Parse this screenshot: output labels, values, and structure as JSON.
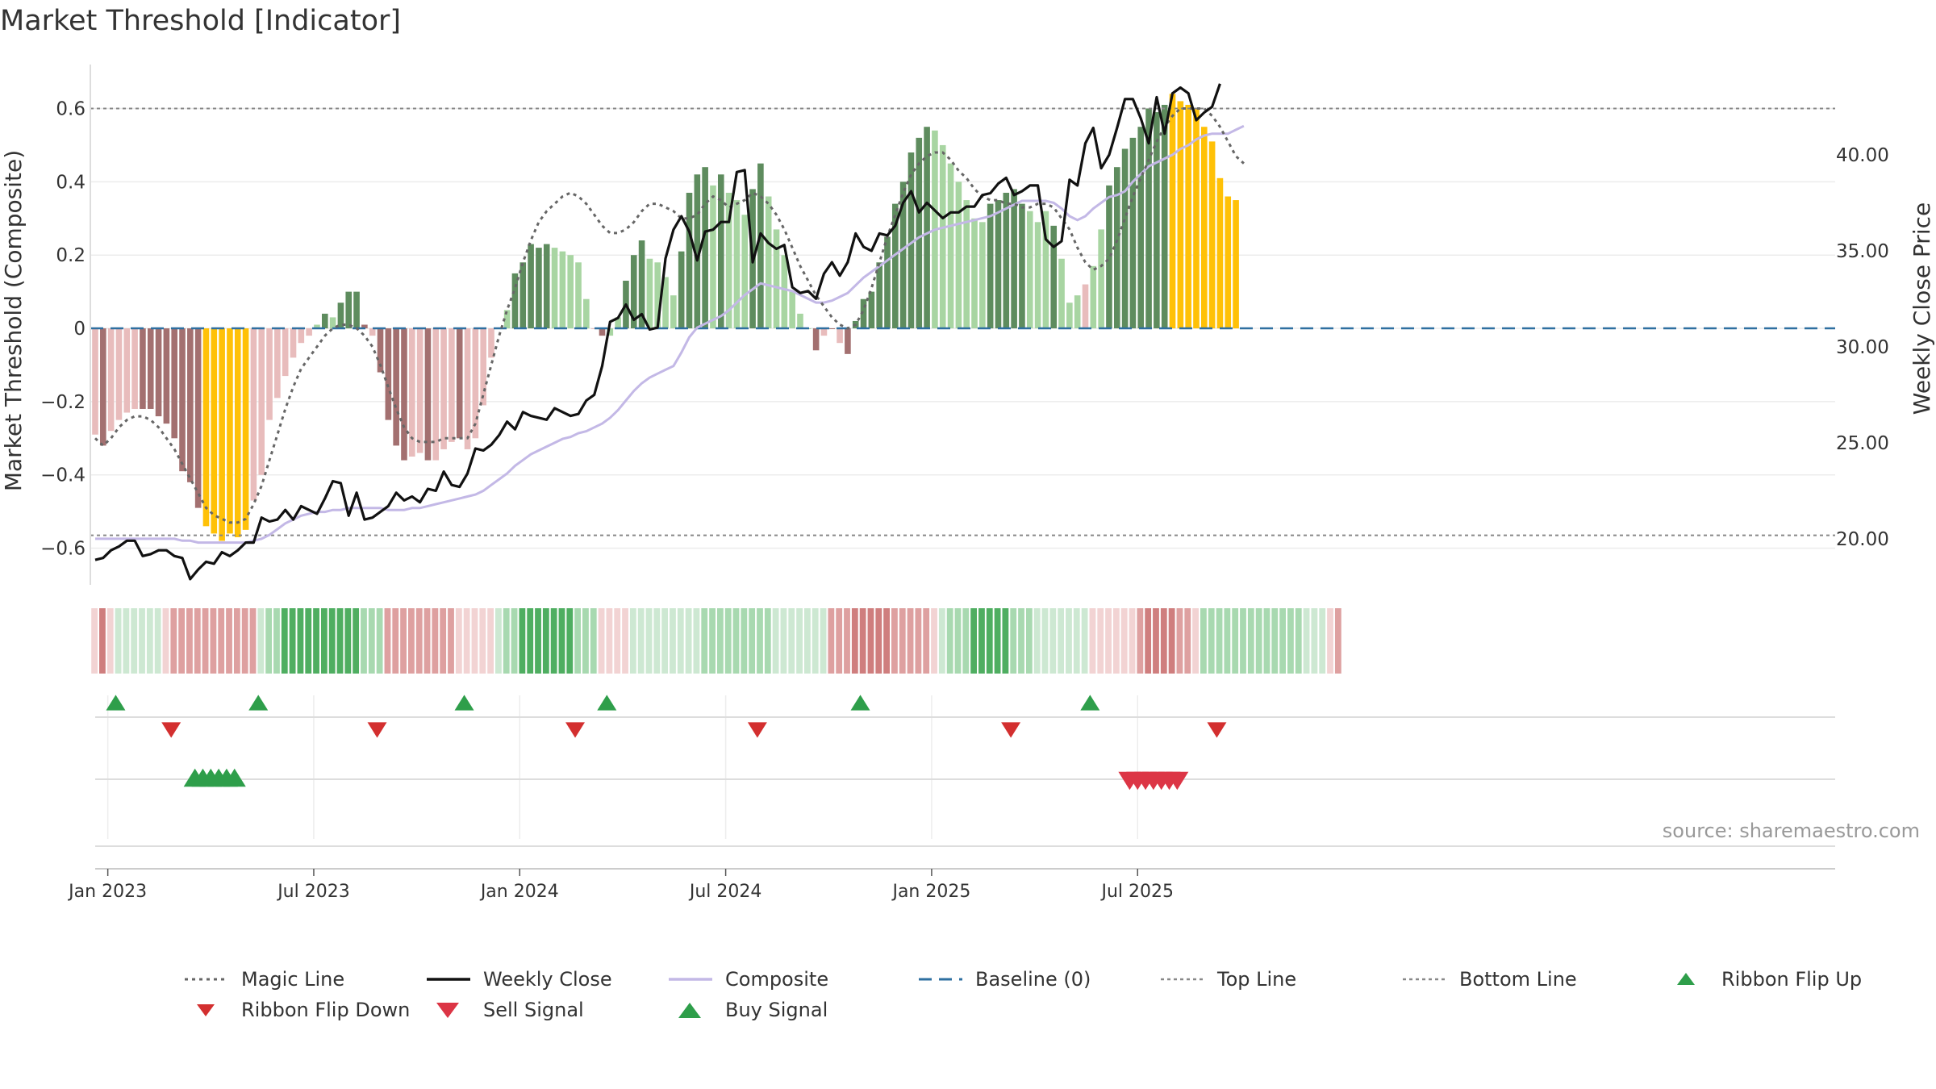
{
  "title": "Market Threshold [Indicator]",
  "source_label": "source: sharemaestro.com",
  "colors": {
    "bar_dark_green": "#5e8c5e",
    "bar_light_green": "#a8d5a2",
    "bar_dark_red": "#a37070",
    "bar_light_red": "#e8bcbc",
    "bar_gold": "#ffc107",
    "weekly_close": "#111111",
    "composite_line": "#c3b8e6",
    "magic_line": "#666666",
    "baseline": "#2e6fa0",
    "ref_line": "#888888",
    "buy": "#2e9e4a",
    "sell": "#dc3545",
    "flip_down": "#d32f2f"
  },
  "legend": [
    {
      "key": "magic",
      "label": "Magic Line",
      "style": "dotted-line"
    },
    {
      "key": "close",
      "label": "Weekly Close",
      "style": "solid-line"
    },
    {
      "key": "composite",
      "label": "Composite",
      "style": "lavender-line"
    },
    {
      "key": "baseline",
      "label": "Baseline (0)",
      "style": "dashed-line"
    },
    {
      "key": "top",
      "label": "Top Line",
      "style": "dashed-gray"
    },
    {
      "key": "bottom",
      "label": "Bottom Line",
      "style": "dashed-gray"
    },
    {
      "key": "flipup",
      "label": "Ribbon Flip Up",
      "style": "triangle-up-green"
    },
    {
      "key": "flipdown",
      "label": "Ribbon Flip Down",
      "style": "triangle-down-red"
    },
    {
      "key": "sell",
      "label": "Sell Signal",
      "style": "triangle-down-sell"
    },
    {
      "key": "buy",
      "label": "Buy Signal",
      "style": "triangle-up-buy"
    }
  ],
  "chart_data": {
    "type": "bar",
    "title": "Market Threshold [Indicator]",
    "ylabel_left": "Market Threshold (Composite)",
    "ylabel_right": "Weekly Close Price",
    "ylim_left": [
      -0.7,
      0.72
    ],
    "ylim_right": [
      17.6,
      44.7
    ],
    "y_ticks_left": [
      "0.6",
      "0.4",
      "0.2",
      "0",
      "−0.2",
      "−0.4",
      "−0.6"
    ],
    "y_tick_values_left": [
      0.6,
      0.4,
      0.2,
      0,
      -0.2,
      -0.4,
      -0.6
    ],
    "y_ticks_right": [
      "40.00",
      "35.00",
      "30.00",
      "25.00",
      "20.00"
    ],
    "y_tick_values_right": [
      40,
      35,
      30,
      25,
      20
    ],
    "x_ticks": [
      "Jan 2023",
      "Jul 2023",
      "Jan 2024",
      "Jul 2024",
      "Jan 2025",
      "Jul 2025"
    ],
    "x_tick_weeks": [
      2,
      28,
      54,
      80,
      106,
      132
    ],
    "top_line": 0.6,
    "bottom_line": -0.565,
    "baseline": 0,
    "composite_bars": [
      -0.29,
      -0.32,
      -0.28,
      -0.25,
      -0.23,
      -0.22,
      -0.22,
      -0.22,
      -0.24,
      -0.26,
      -0.3,
      -0.39,
      -0.42,
      -0.49,
      -0.54,
      -0.56,
      -0.58,
      -0.56,
      -0.57,
      -0.55,
      -0.47,
      -0.4,
      -0.25,
      -0.19,
      -0.13,
      -0.08,
      -0.04,
      -0.02,
      0.01,
      0.04,
      0.03,
      0.07,
      0.1,
      0.1,
      0.01,
      -0.02,
      -0.12,
      -0.25,
      -0.32,
      -0.36,
      -0.35,
      -0.34,
      -0.36,
      -0.36,
      -0.33,
      -0.31,
      -0.3,
      -0.33,
      -0.3,
      -0.21,
      -0.08,
      0.0,
      0.05,
      0.15,
      0.18,
      0.23,
      0.22,
      0.23,
      0.22,
      0.21,
      0.2,
      0.18,
      0.08,
      0.0,
      -0.02,
      -0.02,
      0.03,
      0.13,
      0.2,
      0.24,
      0.19,
      0.18,
      0.14,
      0.09,
      0.21,
      0.37,
      0.42,
      0.44,
      0.39,
      0.42,
      0.37,
      0.35,
      0.31,
      0.38,
      0.45,
      0.36,
      0.27,
      0.2,
      0.1,
      0.04,
      0.0,
      -0.06,
      -0.02,
      0.0,
      -0.04,
      -0.07,
      0.02,
      0.08,
      0.1,
      0.18,
      0.25,
      0.34,
      0.4,
      0.48,
      0.52,
      0.55,
      0.54,
      0.5,
      0.45,
      0.4,
      0.35,
      0.3,
      0.29,
      0.34,
      0.35,
      0.37,
      0.38,
      0.34,
      0.32,
      0.29,
      0.32,
      0.28,
      0.19,
      0.07,
      0.09,
      0.12,
      0.17,
      0.27,
      0.39,
      0.44,
      0.49,
      0.52,
      0.55,
      0.6,
      0.59,
      0.61,
      0.64,
      0.62,
      0.61,
      0.6,
      0.55,
      0.51,
      0.41,
      0.36,
      0.35
    ],
    "bar_classes": [
      "lr",
      "dr",
      "lr",
      "lr",
      "lr",
      "lr",
      "dr",
      "dr",
      "dr",
      "dr",
      "dr",
      "dr",
      "dr",
      "dr",
      "g",
      "g",
      "g",
      "g",
      "g",
      "g",
      "lr",
      "lr",
      "lr",
      "lr",
      "lr",
      "lr",
      "lr",
      "lr",
      "lg",
      "dg",
      "lg",
      "dg",
      "dg",
      "dg",
      "dr",
      "lr",
      "dr",
      "dr",
      "dr",
      "dr",
      "lr",
      "lr",
      "dr",
      "lr",
      "lr",
      "lr",
      "dr",
      "lr",
      "lr",
      "lr",
      "lr",
      "lg",
      "lg",
      "dg",
      "dg",
      "dg",
      "dg",
      "dg",
      "lg",
      "lg",
      "lg",
      "lg",
      "lg",
      "lr",
      "dr",
      "lg",
      "lg",
      "dg",
      "dg",
      "dg",
      "lg",
      "lg",
      "lg",
      "lg",
      "dg",
      "dg",
      "dg",
      "dg",
      "lg",
      "dg",
      "lg",
      "lg",
      "lg",
      "dg",
      "dg",
      "lg",
      "lg",
      "lg",
      "lg",
      "lg",
      "lg",
      "dr",
      "lr",
      "dr",
      "lr",
      "dr",
      "dg",
      "dg",
      "dg",
      "dg",
      "dg",
      "dg",
      "dg",
      "dg",
      "dg",
      "dg",
      "lg",
      "lg",
      "lg",
      "lg",
      "lg",
      "lg",
      "lg",
      "dg",
      "dg",
      "dg",
      "dg",
      "dg",
      "lg",
      "lg",
      "lg",
      "dg",
      "lg",
      "lg",
      "lg",
      "lr",
      "lg",
      "lg",
      "dg",
      "dg",
      "dg",
      "dg",
      "dg",
      "dg",
      "dg",
      "dg",
      "g",
      "g",
      "g",
      "g",
      "g",
      "g",
      "g",
      "g",
      "g",
      "lg",
      "lg",
      "lg",
      "lg"
    ],
    "weekly_close": [
      18.9,
      19.0,
      19.4,
      19.6,
      19.9,
      19.9,
      19.1,
      19.2,
      19.4,
      19.4,
      19.1,
      19.0,
      17.9,
      18.4,
      18.8,
      18.7,
      19.3,
      19.1,
      19.4,
      19.8,
      19.8,
      21.1,
      20.9,
      21.0,
      21.5,
      21.0,
      21.7,
      21.5,
      21.3,
      22.1,
      23.0,
      22.9,
      21.2,
      22.4,
      21.0,
      21.1,
      21.4,
      21.7,
      22.4,
      22.0,
      22.2,
      21.9,
      22.6,
      22.5,
      23.5,
      22.8,
      22.7,
      23.4,
      24.7,
      24.6,
      24.9,
      25.4,
      26.1,
      25.7,
      26.6,
      26.4,
      26.3,
      26.2,
      26.8,
      26.6,
      26.4,
      26.5,
      27.2,
      27.5,
      29.0,
      31.3,
      31.5,
      32.2,
      31.4,
      31.7,
      30.9,
      31.0,
      34.6,
      36.1,
      36.8,
      36.0,
      34.5,
      36.0,
      36.1,
      36.5,
      36.5,
      39.1,
      39.2,
      34.4,
      35.9,
      35.4,
      35.1,
      35.3,
      33.1,
      32.8,
      32.9,
      32.5,
      33.8,
      34.4,
      33.7,
      34.4,
      35.9,
      35.2,
      35.0,
      35.9,
      35.8,
      36.3,
      37.5,
      38.1,
      37.0,
      37.5,
      37.1,
      36.7,
      37.0,
      37.0,
      37.3,
      37.3,
      37.9,
      38.0,
      38.5,
      38.8,
      37.9,
      38.1,
      38.4,
      38.4,
      35.6,
      35.2,
      35.5,
      38.7,
      38.4,
      40.6,
      41.4,
      39.3,
      40.0,
      41.4,
      42.9,
      42.9,
      41.9,
      40.6,
      43.0,
      41.1,
      43.2,
      43.5,
      43.2,
      41.8,
      42.2,
      42.5,
      43.7
    ],
    "composite_line": [
      20.0,
      20.0,
      20.0,
      20.0,
      20.0,
      20.0,
      20.0,
      20.0,
      20.0,
      20.0,
      20.0,
      19.9,
      19.9,
      19.8,
      19.8,
      19.8,
      19.8,
      19.8,
      19.8,
      19.8,
      19.9,
      20.0,
      20.2,
      20.5,
      20.8,
      21.0,
      21.2,
      21.3,
      21.4,
      21.4,
      21.5,
      21.5,
      21.6,
      21.6,
      21.6,
      21.6,
      21.6,
      21.5,
      21.5,
      21.5,
      21.6,
      21.6,
      21.7,
      21.8,
      21.9,
      22.0,
      22.1,
      22.2,
      22.3,
      22.5,
      22.8,
      23.1,
      23.4,
      23.8,
      24.1,
      24.4,
      24.6,
      24.8,
      25.0,
      25.2,
      25.3,
      25.5,
      25.6,
      25.8,
      26.0,
      26.3,
      26.7,
      27.2,
      27.7,
      28.1,
      28.4,
      28.6,
      28.8,
      29.0,
      29.7,
      30.5,
      31.0,
      31.2,
      31.4,
      31.6,
      31.9,
      32.3,
      32.7,
      33.0,
      33.3,
      33.2,
      33.1,
      33.0,
      32.9,
      32.7,
      32.5,
      32.3,
      32.3,
      32.4,
      32.6,
      32.8,
      33.2,
      33.6,
      33.9,
      34.2,
      34.5,
      34.8,
      35.1,
      35.4,
      35.7,
      35.9,
      36.1,
      36.2,
      36.3,
      36.4,
      36.5,
      36.6,
      36.7,
      36.8,
      37.0,
      37.2,
      37.4,
      37.6,
      37.6,
      37.6,
      37.6,
      37.5,
      37.2,
      36.8,
      36.6,
      36.8,
      37.2,
      37.5,
      37.8,
      37.9,
      38.1,
      38.6,
      39.0,
      39.4,
      39.6,
      39.8,
      40.0,
      40.3,
      40.5,
      40.8,
      41.0,
      41.1,
      41.1,
      41.1,
      41.3,
      41.5
    ],
    "magic_line": [
      -0.3,
      -0.32,
      -0.3,
      -0.27,
      -0.25,
      -0.24,
      -0.24,
      -0.25,
      -0.27,
      -0.3,
      -0.33,
      -0.37,
      -0.41,
      -0.45,
      -0.49,
      -0.51,
      -0.52,
      -0.53,
      -0.53,
      -0.52,
      -0.48,
      -0.43,
      -0.36,
      -0.29,
      -0.22,
      -0.16,
      -0.11,
      -0.08,
      -0.05,
      -0.02,
      0.0,
      0.01,
      0.01,
      0.0,
      -0.02,
      -0.05,
      -0.1,
      -0.16,
      -0.22,
      -0.27,
      -0.3,
      -0.31,
      -0.31,
      -0.31,
      -0.3,
      -0.3,
      -0.3,
      -0.3,
      -0.26,
      -0.18,
      -0.1,
      -0.02,
      0.05,
      0.11,
      0.18,
      0.24,
      0.29,
      0.32,
      0.34,
      0.36,
      0.37,
      0.36,
      0.34,
      0.31,
      0.28,
      0.26,
      0.26,
      0.27,
      0.29,
      0.32,
      0.34,
      0.34,
      0.33,
      0.32,
      0.3,
      0.3,
      0.31,
      0.34,
      0.36,
      0.35,
      0.33,
      0.34,
      0.35,
      0.37,
      0.36,
      0.34,
      0.31,
      0.27,
      0.22,
      0.17,
      0.13,
      0.09,
      0.06,
      0.03,
      0.01,
      0.0,
      0.01,
      0.05,
      0.11,
      0.18,
      0.25,
      0.31,
      0.37,
      0.42,
      0.45,
      0.47,
      0.48,
      0.48,
      0.46,
      0.43,
      0.41,
      0.38,
      0.36,
      0.35,
      0.35,
      0.34,
      0.34,
      0.33,
      0.33,
      0.34,
      0.34,
      0.33,
      0.3,
      0.27,
      0.22,
      0.18,
      0.16,
      0.17,
      0.19,
      0.24,
      0.3,
      0.36,
      0.41,
      0.46,
      0.51,
      0.55,
      0.58,
      0.6,
      0.6,
      0.6,
      0.6,
      0.58,
      0.55,
      0.51,
      0.47,
      0.45
    ],
    "ribbon": [
      -1,
      -3,
      -1,
      1,
      1,
      1,
      1,
      1,
      1,
      -1,
      -2,
      -2,
      -2,
      -2,
      -2,
      -2,
      -2,
      -2,
      -2,
      -2,
      -2,
      1,
      2,
      2,
      3,
      3,
      3,
      3,
      3,
      3,
      3,
      3,
      3,
      3,
      2,
      2,
      2,
      -2,
      -2,
      -2,
      -2,
      -2,
      -2,
      -2,
      -2,
      -2,
      -1,
      -1,
      -1,
      -1,
      -1,
      1,
      2,
      2,
      3,
      3,
      3,
      3,
      3,
      3,
      3,
      2,
      2,
      2,
      -1,
      -1,
      -1,
      -1,
      1,
      1,
      1,
      1,
      1,
      1,
      1,
      1,
      1,
      2,
      2,
      2,
      2,
      2,
      2,
      2,
      2,
      2,
      1,
      1,
      1,
      1,
      1,
      1,
      1,
      -2,
      -2,
      -2,
      -3,
      -3,
      -3,
      -3,
      -3,
      -2,
      -2,
      -2,
      -2,
      -2,
      -1,
      1,
      2,
      2,
      2,
      3,
      3,
      3,
      3,
      3,
      2,
      2,
      2,
      1,
      1,
      1,
      1,
      1,
      1,
      1,
      -1,
      -1,
      -1,
      -1,
      -1,
      -1,
      -2,
      -3,
      -3,
      -3,
      -3,
      -2,
      -2,
      -1,
      2,
      2,
      2,
      2,
      2,
      2,
      2,
      2,
      2,
      2,
      2,
      2,
      2,
      1,
      1,
      1,
      -1,
      -2
    ],
    "ribbon_flip_up_weeks": [
      3,
      21,
      47,
      65,
      97,
      126
    ],
    "ribbon_flip_down_weeks": [
      10,
      36,
      61,
      84,
      116,
      142
    ],
    "buy_signal_weeks": [
      13,
      14,
      15,
      16,
      17,
      18
    ],
    "sell_signal_weeks": [
      131,
      132,
      133,
      134,
      135,
      136,
      137
    ]
  }
}
